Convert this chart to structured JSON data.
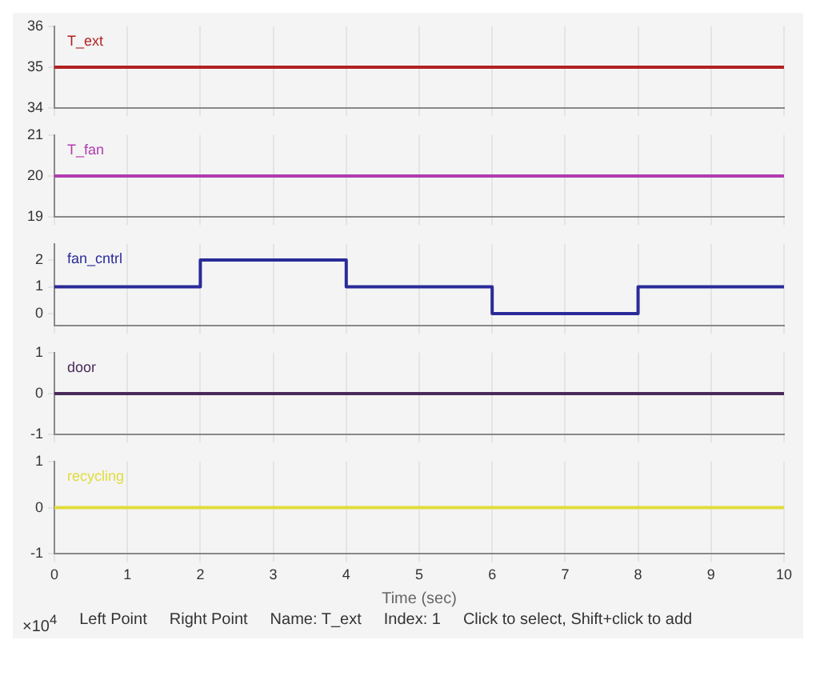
{
  "chart_data": [
    {
      "type": "line",
      "x": [
        0,
        10
      ],
      "series": [
        {
          "name": "T_ext",
          "color": "#b22222",
          "values": [
            35,
            35
          ]
        }
      ],
      "xlim": [
        0,
        10
      ],
      "xticks": [
        0,
        1,
        2,
        3,
        4,
        5,
        6,
        7,
        8,
        9,
        10
      ],
      "ylim": [
        34,
        36
      ],
      "yticks": [
        34,
        35,
        36
      ],
      "grid": "x",
      "tick_labels": "y",
      "legend": false
    },
    {
      "type": "line",
      "x": [
        0,
        10
      ],
      "series": [
        {
          "name": "T_fan",
          "color": "#b03cb0",
          "values": [
            20,
            20
          ]
        }
      ],
      "xlim": [
        0,
        10
      ],
      "xticks": [
        0,
        1,
        2,
        3,
        4,
        5,
        6,
        7,
        8,
        9,
        10
      ],
      "ylim": [
        19,
        21
      ],
      "yticks": [
        19,
        20,
        21
      ],
      "grid": "x",
      "tick_labels": "y",
      "legend": false
    },
    {
      "type": "step",
      "x": [
        0,
        2,
        4,
        6,
        8,
        10
      ],
      "series": [
        {
          "name": "fan_cntrl",
          "color": "#2a2a9a",
          "values": [
            1,
            2,
            1,
            0,
            1,
            1
          ]
        }
      ],
      "xlim": [
        0,
        10
      ],
      "xticks": [
        0,
        1,
        2,
        3,
        4,
        5,
        6,
        7,
        8,
        9,
        10
      ],
      "ylim": [
        -0.45,
        2.6
      ],
      "yticks": [
        0,
        1,
        2
      ],
      "grid": "x",
      "tick_labels": "y",
      "legend": false
    },
    {
      "type": "line",
      "x": [
        0,
        10
      ],
      "series": [
        {
          "name": "door",
          "color": "#4b2a5a",
          "values": [
            0,
            0
          ]
        }
      ],
      "xlim": [
        0,
        10
      ],
      "xticks": [
        0,
        1,
        2,
        3,
        4,
        5,
        6,
        7,
        8,
        9,
        10
      ],
      "ylim": [
        -1,
        1
      ],
      "yticks": [
        -1,
        0,
        1
      ],
      "grid": "x",
      "tick_labels": "y",
      "legend": false
    },
    {
      "type": "line",
      "x": [
        0,
        10
      ],
      "series": [
        {
          "name": "recycling",
          "color": "#e0dc3c",
          "values": [
            0,
            0
          ]
        }
      ],
      "xlim": [
        0,
        10
      ],
      "xticks": [
        0,
        1,
        2,
        3,
        4,
        5,
        6,
        7,
        8,
        9,
        10
      ],
      "ylim": [
        -1,
        1
      ],
      "yticks": [
        -1,
        0,
        1
      ],
      "xlabel": "Time (sec)",
      "grid": "x",
      "legend": false,
      "annotations": [
        "×10$^{4}$",
        "Left Point",
        "Right Point",
        "Name: T_ext",
        "Index: 1",
        "Click to select, Shift+click to add"
      ]
    }
  ]
}
